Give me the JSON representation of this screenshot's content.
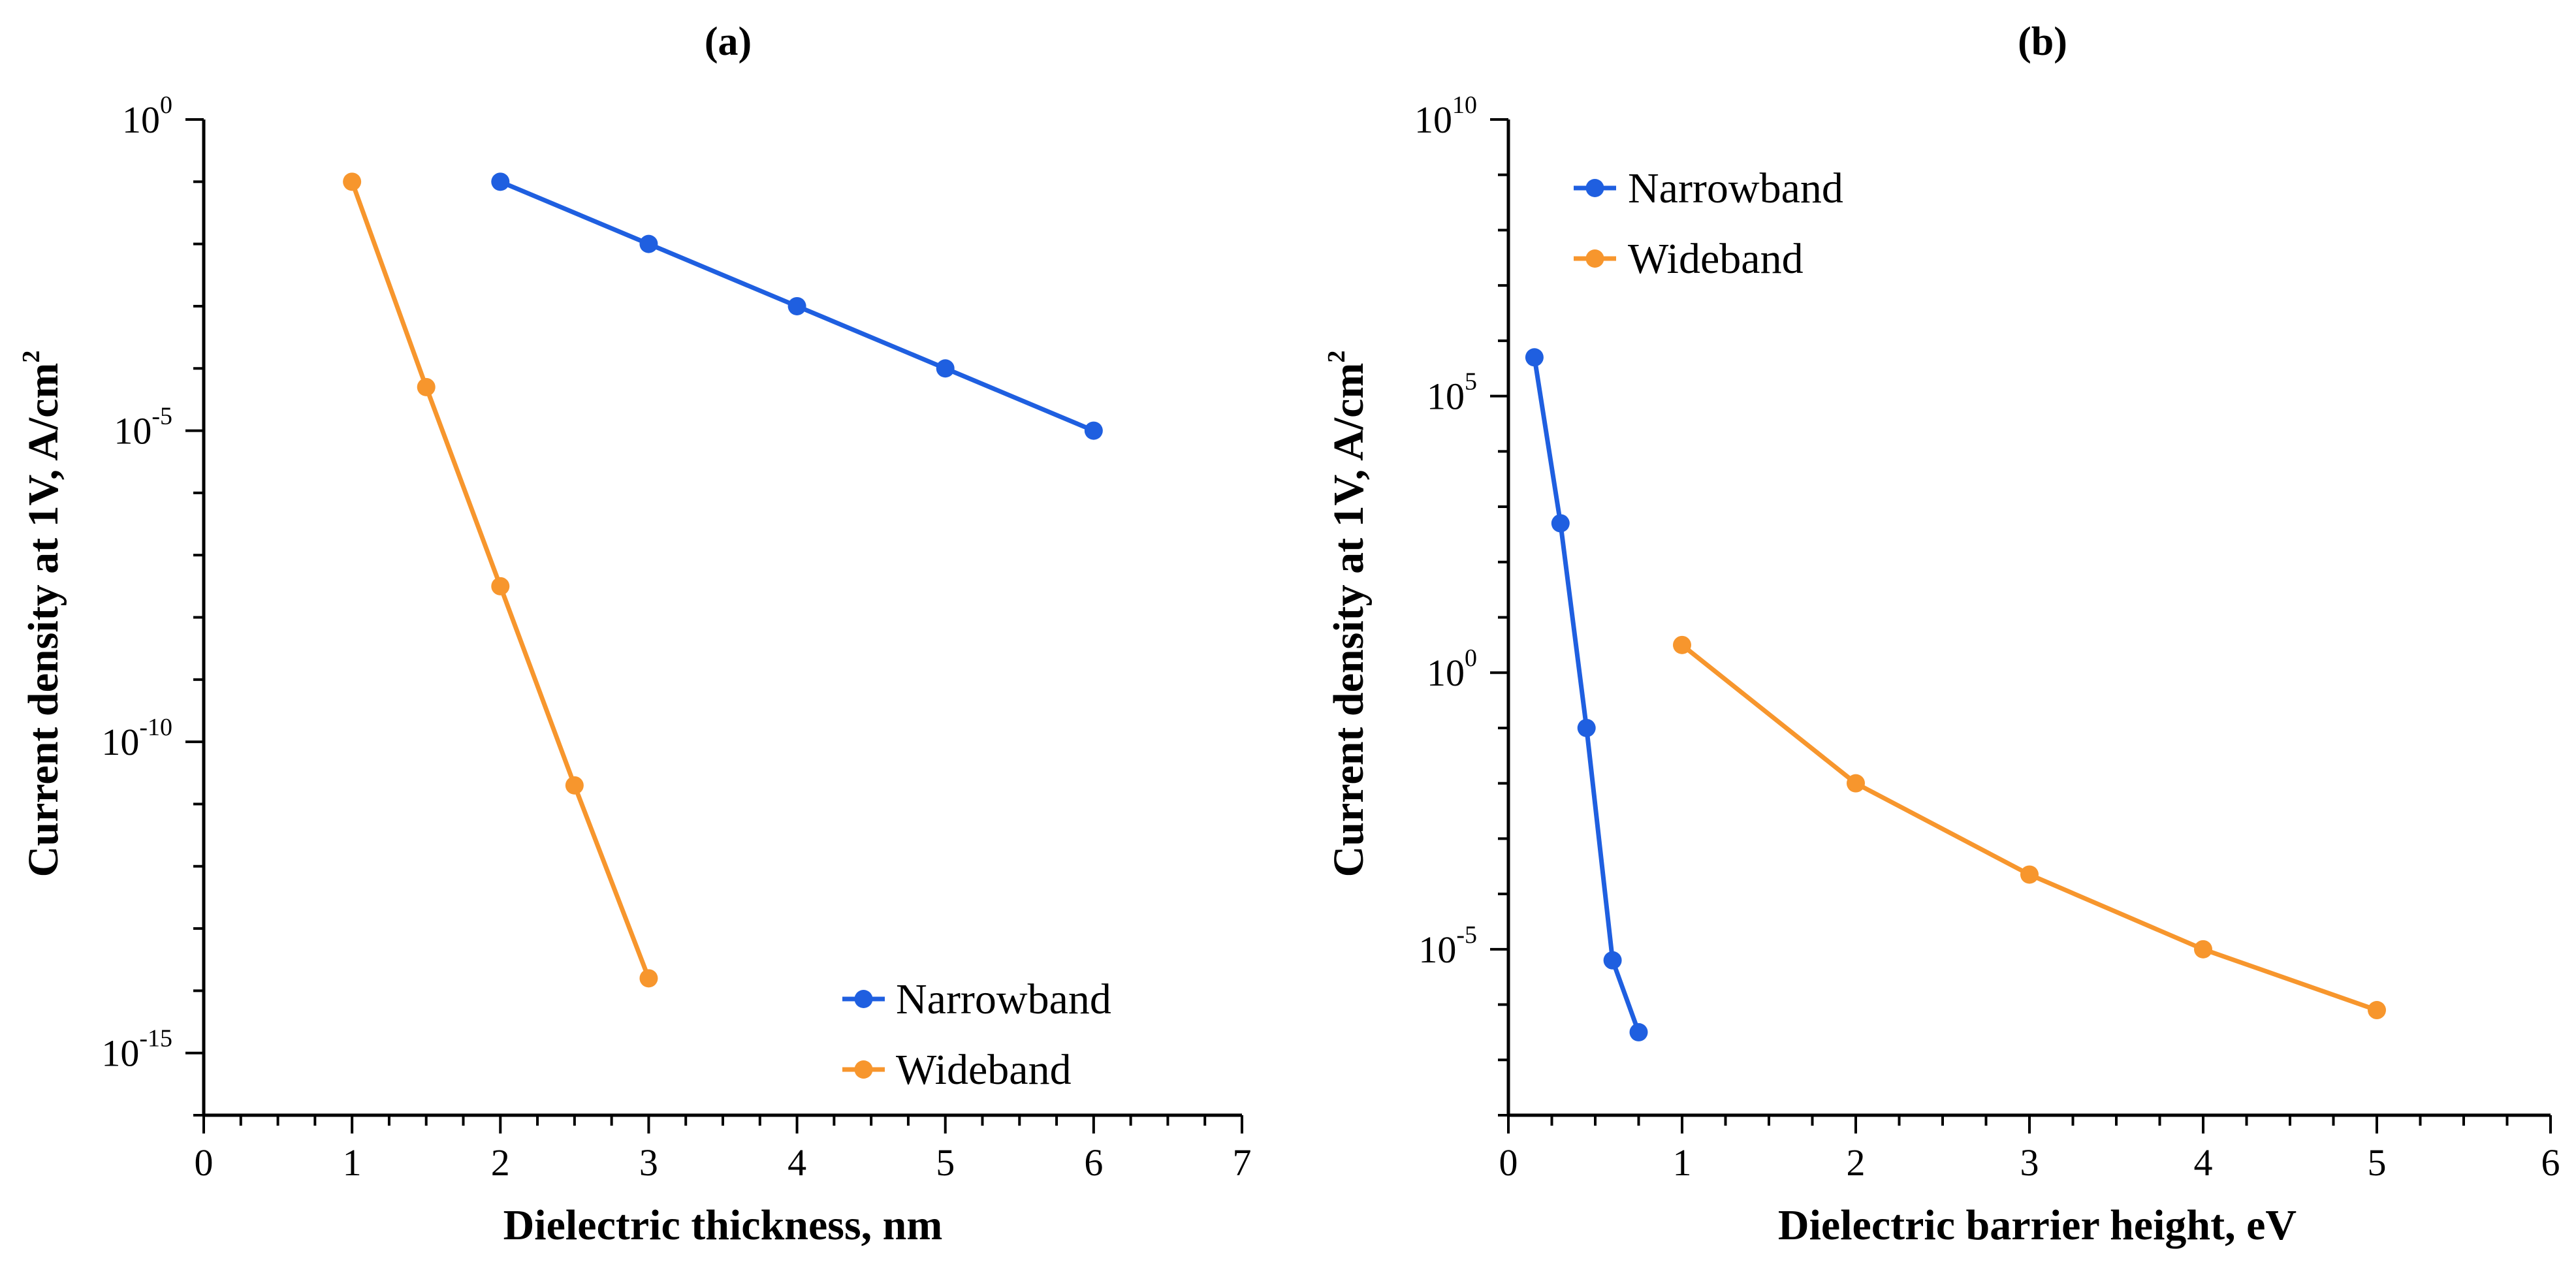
{
  "chart_data": [
    {
      "type": "line",
      "panel_label": "(a)",
      "xlabel": "Dielectric thickness, nm",
      "ylabel_text": "Current density at 1V, A/cm",
      "ylabel_superscript": "2",
      "yscale": "log",
      "xlim": [
        0,
        7
      ],
      "ylim_log10": [
        -16,
        0
      ],
      "x_ticks": [
        0,
        1,
        2,
        3,
        4,
        5,
        6,
        7
      ],
      "x_tick_labels": [
        "0",
        "1",
        "2",
        "3",
        "4",
        "5",
        "6",
        "7"
      ],
      "y_ticks_log10": [
        0,
        -5,
        -10,
        -15
      ],
      "y_tick_labels": [
        {
          "base": "10",
          "exp": "0"
        },
        {
          "base": "10",
          "exp": "-5"
        },
        {
          "base": "10",
          "exp": "-10"
        },
        {
          "base": "10",
          "exp": "-15"
        }
      ],
      "legend_position": "bottom-right",
      "series": [
        {
          "name": "Narrowband",
          "color": "#1f5fe0",
          "x": [
            2,
            3,
            4,
            5,
            6
          ],
          "y_log10": [
            -1,
            -2,
            -3,
            -4,
            -5
          ]
        },
        {
          "name": "Wideband",
          "color": "#f7962d",
          "x": [
            1,
            1.5,
            2,
            2.5,
            3
          ],
          "y_log10": [
            -1,
            -4.3,
            -7.5,
            -10.7,
            -13.8
          ]
        }
      ]
    },
    {
      "type": "line",
      "panel_label": "(b)",
      "xlabel": "Dielectric barrier height, eV",
      "ylabel_text": "Current density at 1V, A/cm",
      "ylabel_superscript": "2",
      "yscale": "log",
      "xlim": [
        0,
        6
      ],
      "ylim_log10": [
        -8,
        10
      ],
      "x_ticks": [
        0,
        1,
        2,
        3,
        4,
        5,
        6
      ],
      "x_tick_labels": [
        "0",
        "1",
        "2",
        "3",
        "4",
        "5",
        "6"
      ],
      "y_ticks_log10": [
        10,
        5,
        0,
        -5
      ],
      "y_tick_labels": [
        {
          "base": "10",
          "exp": "10"
        },
        {
          "base": "10",
          "exp": "5"
        },
        {
          "base": "10",
          "exp": "0"
        },
        {
          "base": "10",
          "exp": "-5"
        }
      ],
      "legend_position": "top-left",
      "series": [
        {
          "name": "Narrowband",
          "color": "#1f5fe0",
          "x": [
            0.15,
            0.3,
            0.45,
            0.6,
            0.75
          ],
          "y_log10": [
            5.7,
            2.7,
            -1,
            -5.2,
            -6.5
          ]
        },
        {
          "name": "Wideband",
          "color": "#f7962d",
          "x": [
            1,
            2,
            3,
            4,
            5
          ],
          "y_log10": [
            0.5,
            -2,
            -3.65,
            -5,
            -6.1
          ]
        }
      ]
    }
  ]
}
